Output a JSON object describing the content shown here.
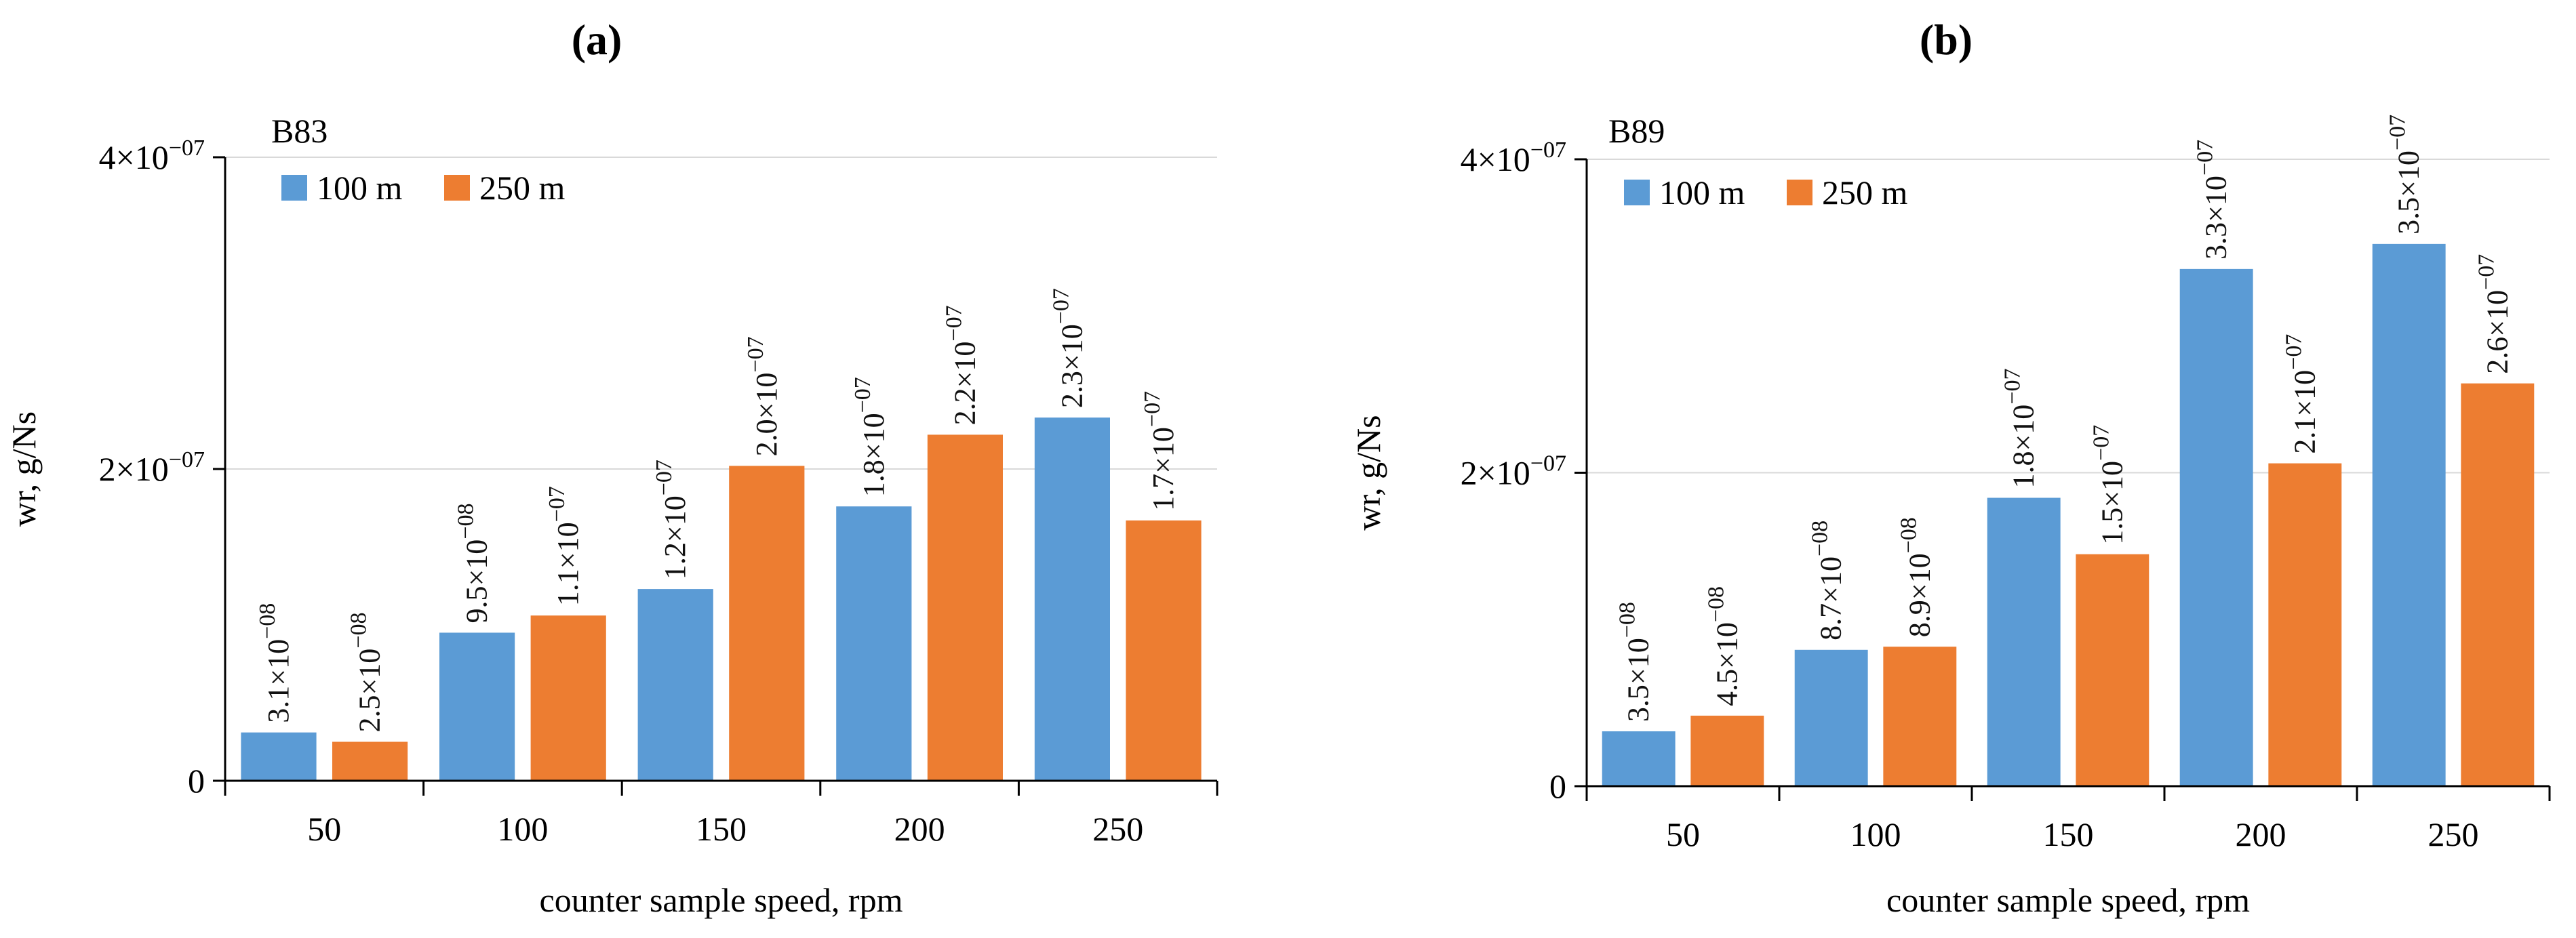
{
  "figure": {
    "panels": [
      {
        "label": "(a)"
      },
      {
        "label": "(b)"
      }
    ]
  },
  "colors": {
    "series_100m": "#5b9bd5",
    "series_250m": "#ed7d31",
    "axis": "#000000",
    "grid": "#d9d9d9"
  },
  "chart_data": [
    {
      "type": "bar",
      "panel_label": "(a)",
      "title": "B83",
      "xlabel": "counter sample speed, rpm",
      "ylabel": "wr, g/Ns",
      "categories": [
        "50",
        "100",
        "150",
        "200",
        "250"
      ],
      "ylim": [
        0,
        4e-07
      ],
      "yticks": [
        {
          "value": 0,
          "label": "0"
        },
        {
          "value": 2e-07,
          "label": "2×10",
          "exp": "−07"
        },
        {
          "value": 4e-07,
          "label": "4×10",
          "exp": "−07"
        }
      ],
      "grid": true,
      "legend_position": "top-left",
      "series": [
        {
          "name": "100 m",
          "values": [
            3.1e-08,
            9.5e-08,
            1.2e-07,
            1.8e-07,
            2.3e-07
          ],
          "bar_values": [
            3.1e-08,
            9.5e-08,
            1.23e-07,
            1.76e-07,
            2.33e-07
          ],
          "labels": [
            {
              "mant": "3.1×10",
              "exp": "−08"
            },
            {
              "mant": "9.5×10",
              "exp": "−08"
            },
            {
              "mant": "1.2×10",
              "exp": "−07"
            },
            {
              "mant": "1.8×10",
              "exp": "−07"
            },
            {
              "mant": "2.3×10",
              "exp": "−07"
            }
          ]
        },
        {
          "name": "250 m",
          "values": [
            2.5e-08,
            1.1e-07,
            2e-07,
            2.2e-07,
            1.7e-07
          ],
          "bar_values": [
            2.5e-08,
            1.06e-07,
            2.02e-07,
            2.22e-07,
            1.67e-07
          ],
          "labels": [
            {
              "mant": "2.5×10",
              "exp": "−08"
            },
            {
              "mant": "1.1×10",
              "exp": "−07"
            },
            {
              "mant": "2.0×10",
              "exp": "−07"
            },
            {
              "mant": "2.2×10",
              "exp": "−07"
            },
            {
              "mant": "1.7×10",
              "exp": "−07"
            }
          ]
        }
      ]
    },
    {
      "type": "bar",
      "panel_label": "(b)",
      "title": "B89",
      "xlabel": "counter sample speed, rpm",
      "ylabel": "wr, g/Ns",
      "categories": [
        "50",
        "100",
        "150",
        "200",
        "250"
      ],
      "ylim": [
        0,
        4e-07
      ],
      "yticks": [
        {
          "value": 0,
          "label": "0"
        },
        {
          "value": 2e-07,
          "label": "2×10",
          "exp": "−07"
        },
        {
          "value": 4e-07,
          "label": "4×10",
          "exp": "−07"
        }
      ],
      "grid": true,
      "legend_position": "top-left",
      "series": [
        {
          "name": "100 m",
          "values": [
            3.5e-08,
            8.7e-08,
            1.8e-07,
            3.3e-07,
            3.5e-07
          ],
          "bar_values": [
            3.5e-08,
            8.7e-08,
            1.84e-07,
            3.3e-07,
            3.46e-07
          ],
          "labels": [
            {
              "mant": "3.5×10",
              "exp": "−08"
            },
            {
              "mant": "8.7×10",
              "exp": "−08"
            },
            {
              "mant": "1.8×10",
              "exp": "−07"
            },
            {
              "mant": "3.3×10",
              "exp": "−07"
            },
            {
              "mant": "3.5×10",
              "exp": "−07"
            }
          ]
        },
        {
          "name": "250 m",
          "values": [
            4.5e-08,
            8.9e-08,
            1.5e-07,
            2.1e-07,
            2.6e-07
          ],
          "bar_values": [
            4.5e-08,
            8.9e-08,
            1.48e-07,
            2.06e-07,
            2.57e-07
          ],
          "labels": [
            {
              "mant": "4.5×10",
              "exp": "−08"
            },
            {
              "mant": "8.9×10",
              "exp": "−08"
            },
            {
              "mant": "1.5×10",
              "exp": "−07"
            },
            {
              "mant": "2.1×10",
              "exp": "−07"
            },
            {
              "mant": "2.6×10",
              "exp": "−07"
            }
          ]
        }
      ]
    }
  ]
}
